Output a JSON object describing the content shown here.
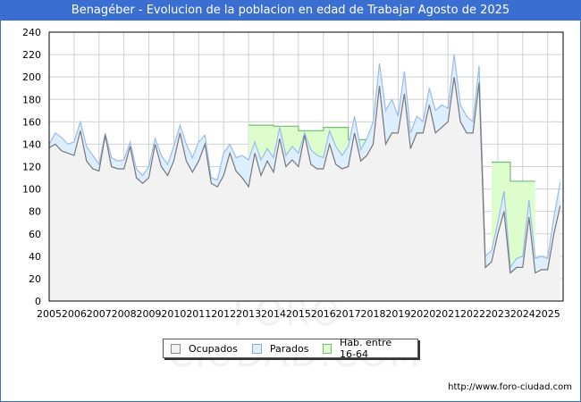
{
  "title": "Benagéber - Evolucion de la poblacion en edad de Trabajar Agosto de 2025",
  "footer_url": "http://www.foro-ciudad.com",
  "watermark": "FORO-CIUDAD.COM",
  "legend": [
    {
      "label": "Ocupados",
      "color": "#f2f2f2",
      "border": "#888888"
    },
    {
      "label": "Parados",
      "color": "#ddeeff",
      "border": "#88aadd"
    },
    {
      "label": "Hab. entre 16-64",
      "color": "#ddfdcc",
      "border": "#77bb77"
    }
  ],
  "colors": {
    "title_bg": "#3a6fd1",
    "ocupados_fill": "#f2f2f2",
    "ocupados_line": "#777777",
    "parados_fill": "#ddeeff",
    "parados_line": "#99bbee",
    "hab_fill": "#ddfdcc",
    "hab_line": "#77bb77",
    "grid": "#d0d0d0"
  },
  "chart_data": {
    "type": "area",
    "title": "Benagéber - Evolucion de la poblacion en edad de Trabajar Agosto de 2025",
    "xlabel": "",
    "ylabel": "",
    "ylim": [
      0,
      240
    ],
    "yticks": [
      0,
      20,
      40,
      60,
      80,
      100,
      120,
      140,
      160,
      180,
      200,
      220,
      240
    ],
    "xticks": [
      "2005",
      "2006",
      "2007",
      "2008",
      "2009",
      "2010",
      "2011",
      "2012",
      "2013",
      "2014",
      "2015",
      "2016",
      "2017",
      "2018",
      "2019",
      "2020",
      "2021",
      "2022",
      "2023",
      "2024",
      "2025"
    ],
    "grid": true,
    "legend_position": "bottom",
    "x": [
      2005.0,
      2005.25,
      2005.5,
      2005.75,
      2006.0,
      2006.25,
      2006.5,
      2006.75,
      2007.0,
      2007.25,
      2007.5,
      2007.75,
      2008.0,
      2008.25,
      2008.5,
      2008.75,
      2009.0,
      2009.25,
      2009.5,
      2009.75,
      2010.0,
      2010.25,
      2010.5,
      2010.75,
      2011.0,
      2011.25,
      2011.5,
      2011.75,
      2012.0,
      2012.25,
      2012.5,
      2012.75,
      2013.0,
      2013.25,
      2013.5,
      2013.75,
      2014.0,
      2014.25,
      2014.5,
      2014.75,
      2015.0,
      2015.25,
      2015.5,
      2015.75,
      2016.0,
      2016.25,
      2016.5,
      2016.75,
      2017.0,
      2017.25,
      2017.5,
      2017.75,
      2018.0,
      2018.25,
      2018.5,
      2018.75,
      2019.0,
      2019.25,
      2019.5,
      2019.75,
      2020.0,
      2020.25,
      2020.5,
      2020.75,
      2021.0,
      2021.25,
      2021.5,
      2021.75,
      2022.0,
      2022.25,
      2022.5,
      2022.75,
      2023.0,
      2023.25,
      2023.5,
      2023.75,
      2024.0,
      2024.25,
      2024.5,
      2024.75,
      2025.0,
      2025.25,
      2025.5
    ],
    "series": [
      {
        "name": "Hab. entre 16-64",
        "values": [
          null,
          null,
          null,
          null,
          null,
          null,
          null,
          null,
          null,
          null,
          null,
          null,
          null,
          null,
          null,
          null,
          null,
          null,
          null,
          null,
          null,
          null,
          null,
          null,
          null,
          null,
          null,
          null,
          null,
          null,
          null,
          null,
          157,
          157,
          157,
          157,
          156,
          156,
          156,
          156,
          152,
          152,
          152,
          152,
          155,
          155,
          155,
          155,
          144,
          144,
          144,
          144,
          null,
          null,
          null,
          null,
          null,
          null,
          null,
          null,
          null,
          null,
          null,
          null,
          null,
          null,
          null,
          null,
          null,
          null,
          null,
          124,
          124,
          124,
          107,
          107,
          107,
          107,
          null,
          null,
          null,
          null,
          null
        ]
      },
      {
        "name": "Parados",
        "values": [
          140,
          150,
          146,
          140,
          142,
          160,
          138,
          130,
          122,
          150,
          128,
          125,
          126,
          142,
          118,
          112,
          120,
          145,
          130,
          122,
          138,
          157,
          140,
          128,
          142,
          148,
          110,
          108,
          132,
          140,
          128,
          130,
          126,
          142,
          126,
          136,
          128,
          155,
          130,
          138,
          132,
          150,
          135,
          130,
          128,
          152,
          138,
          130,
          138,
          165,
          135,
          145,
          160,
          212,
          170,
          180,
          165,
          205,
          150,
          165,
          160,
          190,
          170,
          175,
          172,
          220,
          175,
          165,
          160,
          210,
          40,
          45,
          70,
          98,
          30,
          38,
          40,
          90,
          38,
          40,
          38,
          75,
          106
        ]
      },
      {
        "name": "Ocupados",
        "values": [
          137,
          140,
          134,
          132,
          130,
          152,
          125,
          118,
          116,
          148,
          120,
          118,
          118,
          138,
          110,
          105,
          110,
          140,
          120,
          112,
          125,
          150,
          125,
          115,
          125,
          140,
          105,
          102,
          112,
          132,
          116,
          110,
          102,
          132,
          112,
          125,
          115,
          145,
          120,
          126,
          120,
          148,
          122,
          118,
          118,
          140,
          122,
          118,
          120,
          150,
          125,
          130,
          140,
          192,
          140,
          150,
          150,
          185,
          136,
          150,
          150,
          175,
          150,
          155,
          160,
          200,
          160,
          150,
          150,
          195,
          30,
          35,
          60,
          80,
          25,
          30,
          30,
          75,
          25,
          28,
          28,
          60,
          85
        ]
      }
    ]
  }
}
